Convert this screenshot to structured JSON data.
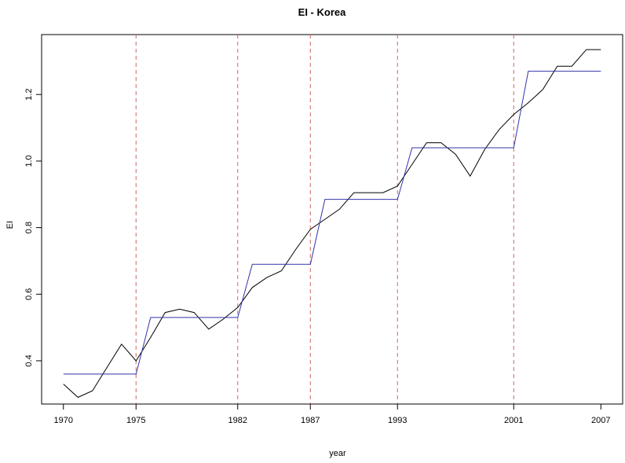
{
  "chart_data": {
    "type": "line",
    "title": "EI - Korea",
    "xlabel": "year",
    "ylabel": "EI",
    "xlim": [
      1968.5,
      2008.5
    ],
    "ylim": [
      0.27,
      1.38
    ],
    "x_ticks": [
      1970,
      1975,
      1982,
      1987,
      1993,
      2001,
      2007
    ],
    "y_ticks": [
      0.4,
      0.6,
      0.8,
      1.0,
      1.2
    ],
    "y_tick_labels": [
      "0.4",
      "0.6",
      "0.8",
      "1.0",
      "1.2"
    ],
    "grid": false,
    "break_years": [
      1975,
      1982,
      1987,
      1993,
      2001
    ],
    "break_line_color": "#cc6666",
    "series": [
      {
        "color": "#000000",
        "x": [
          1970,
          1971,
          1972,
          1973,
          1974,
          1975,
          1976,
          1977,
          1978,
          1979,
          1980,
          1981,
          1982,
          1983,
          1984,
          1985,
          1986,
          1987,
          1988,
          1989,
          1990,
          1991,
          1992,
          1993,
          1994,
          1995,
          1996,
          1997,
          1998,
          1999,
          2000,
          2001,
          2002,
          2003,
          2004,
          2005,
          2006,
          2007
        ],
        "y": [
          0.33,
          0.29,
          0.31,
          0.38,
          0.45,
          0.4,
          0.47,
          0.545,
          0.555,
          0.545,
          0.495,
          0.525,
          0.56,
          0.62,
          0.65,
          0.67,
          0.735,
          0.795,
          0.825,
          0.855,
          0.905,
          0.905,
          0.905,
          0.925,
          0.99,
          1.055,
          1.055,
          1.02,
          0.955,
          1.035,
          1.095,
          1.14,
          1.175,
          1.215,
          1.285,
          1.285,
          1.335,
          1.335
        ]
      },
      {
        "color": "#3333aa",
        "step": true,
        "segments": [
          {
            "x0": 1970,
            "x1": 1975,
            "y": 0.36
          },
          {
            "x0": 1976,
            "x1": 1982,
            "y": 0.53
          },
          {
            "x0": 1983,
            "x1": 1987,
            "y": 0.69
          },
          {
            "x0": 1988,
            "x1": 1993,
            "y": 0.885
          },
          {
            "x0": 1994,
            "x1": 2001,
            "y": 1.04
          },
          {
            "x0": 2002,
            "x1": 2007,
            "y": 1.27
          }
        ]
      }
    ]
  }
}
